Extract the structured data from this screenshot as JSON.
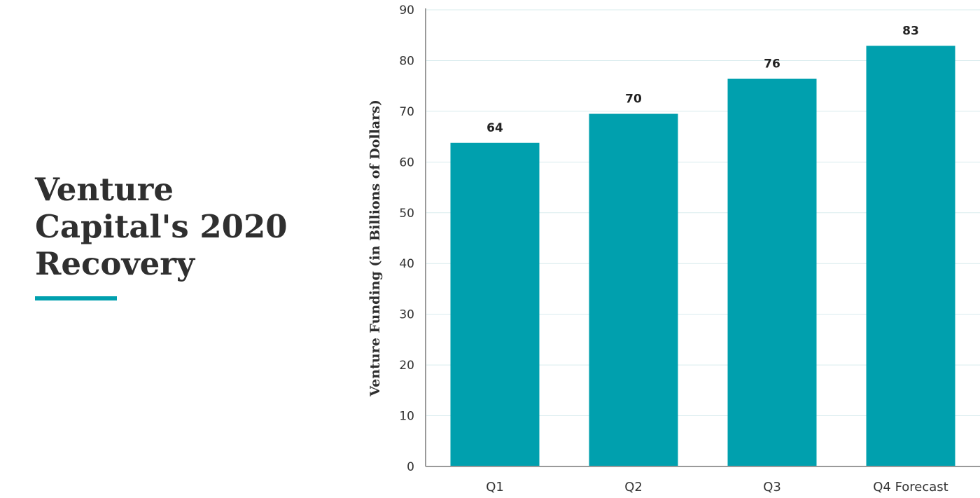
{
  "title_lines": [
    "Venture",
    "Capital's 2020",
    "Recovery"
  ],
  "accent_color": "#00a0ae",
  "chart_data": {
    "type": "bar",
    "categories": [
      "Q1",
      "Q2",
      "Q3",
      "Q4 Forecast"
    ],
    "values": [
      63.8,
      69.5,
      76.4,
      82.9
    ],
    "data_labels": [
      "64",
      "70",
      "76",
      "83"
    ],
    "ylabel": "Venture Funding (in Billions of Dollars)",
    "xlabel": "",
    "ylim": [
      0,
      90
    ],
    "yticks": [
      0,
      10,
      20,
      30,
      40,
      50,
      60,
      70,
      80,
      90
    ],
    "bar_color": "#00a0ae",
    "grid": true,
    "legend": "none"
  }
}
